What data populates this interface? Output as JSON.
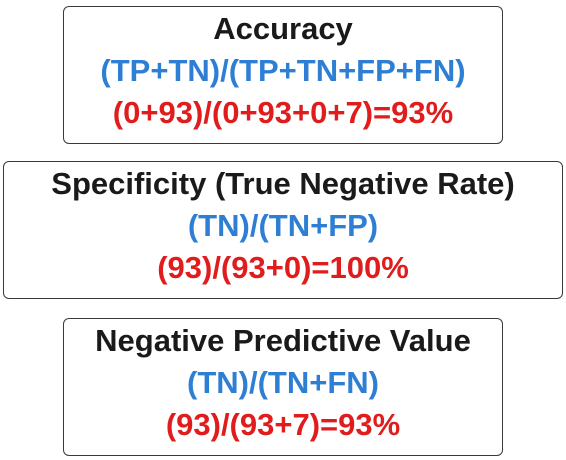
{
  "metrics": [
    {
      "title": "Accuracy",
      "formula": "(TP+TN)/(TP+TN+FP+FN)",
      "calculation": "(0+93)/(0+93+0+7)=93%"
    },
    {
      "title": "Specificity (True Negative Rate)",
      "formula": "(TN)/(TN+FP)",
      "calculation": "(93)/(93+0)=100%"
    },
    {
      "title": "Negative Predictive Value",
      "formula": "(TN)/(TN+FN)",
      "calculation": "(93)/(93+7)=93%"
    }
  ],
  "colors": {
    "title": "#1a1a1a",
    "formula": "#2e7fd4",
    "calculation": "#e01c1c",
    "border": "#3a3a3a"
  }
}
